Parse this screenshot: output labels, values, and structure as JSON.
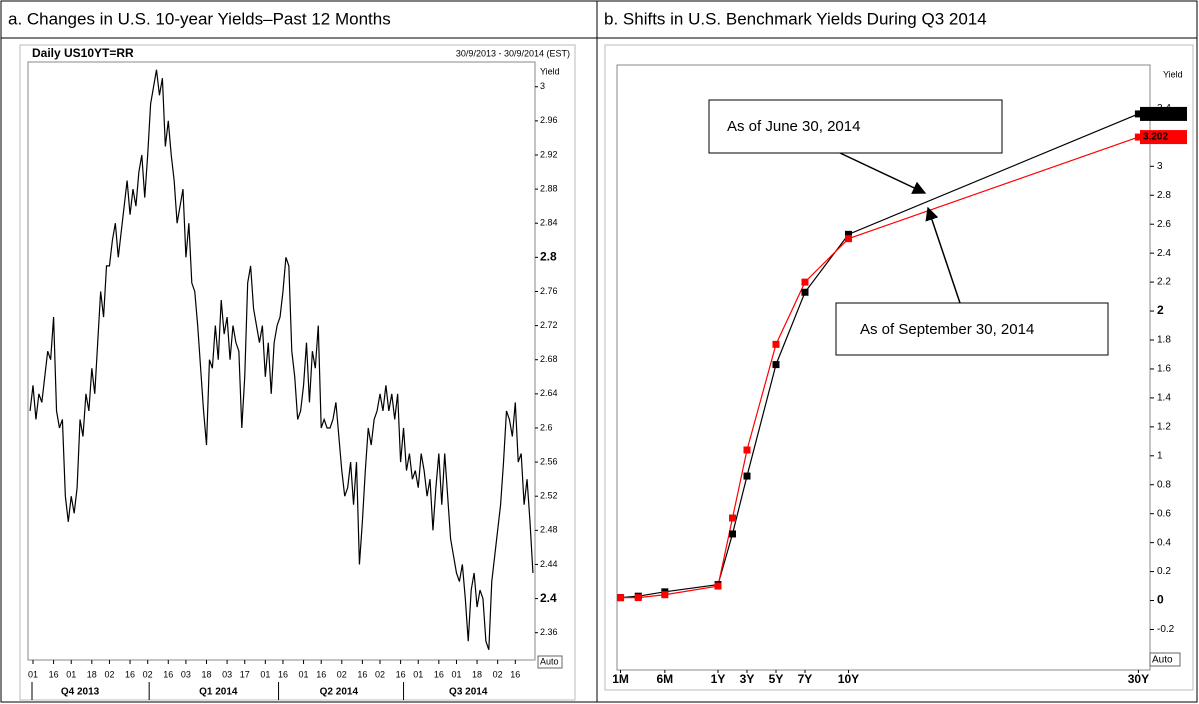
{
  "chart_data": [
    {
      "type": "line",
      "title": "a. Changes in U.S. 10-year Yields–Past 12 Months",
      "subtitle": "Daily US10YT=RR",
      "date_range": "30/9/2013 - 30/9/2014 (EST)",
      "ylabel": "Yield",
      "scale_mode": "Auto",
      "color": "#000000",
      "values": [
        2.62,
        2.65,
        2.61,
        2.64,
        2.63,
        2.66,
        2.69,
        2.68,
        2.73,
        2.62,
        2.6,
        2.61,
        2.52,
        2.49,
        2.52,
        2.5,
        2.53,
        2.61,
        2.59,
        2.64,
        2.62,
        2.67,
        2.64,
        2.7,
        2.76,
        2.73,
        2.79,
        2.79,
        2.82,
        2.84,
        2.8,
        2.83,
        2.86,
        2.89,
        2.85,
        2.88,
        2.86,
        2.9,
        2.92,
        2.87,
        2.92,
        2.98,
        3.0,
        3.02,
        2.99,
        3.01,
        2.93,
        2.96,
        2.92,
        2.89,
        2.84,
        2.86,
        2.88,
        2.8,
        2.84,
        2.77,
        2.76,
        2.72,
        2.67,
        2.62,
        2.58,
        2.68,
        2.67,
        2.72,
        2.68,
        2.75,
        2.71,
        2.73,
        2.68,
        2.72,
        2.7,
        2.69,
        2.6,
        2.66,
        2.77,
        2.79,
        2.74,
        2.72,
        2.7,
        2.72,
        2.66,
        2.7,
        2.64,
        2.7,
        2.72,
        2.73,
        2.76,
        2.8,
        2.79,
        2.69,
        2.66,
        2.61,
        2.62,
        2.65,
        2.7,
        2.63,
        2.69,
        2.67,
        2.72,
        2.6,
        2.61,
        2.6,
        2.6,
        2.61,
        2.63,
        2.59,
        2.55,
        2.52,
        2.53,
        2.56,
        2.51,
        2.56,
        2.44,
        2.49,
        2.55,
        2.6,
        2.58,
        2.61,
        2.62,
        2.64,
        2.62,
        2.65,
        2.62,
        2.64,
        2.61,
        2.64,
        2.56,
        2.6,
        2.55,
        2.57,
        2.54,
        2.55,
        2.53,
        2.57,
        2.55,
        2.52,
        2.54,
        2.48,
        2.53,
        2.57,
        2.51,
        2.57,
        2.52,
        2.47,
        2.45,
        2.43,
        2.42,
        2.44,
        2.4,
        2.35,
        2.41,
        2.43,
        2.39,
        2.41,
        2.4,
        2.35,
        2.34,
        2.42,
        2.45,
        2.48,
        2.51,
        2.56,
        2.62,
        2.61,
        2.59,
        2.63,
        2.56,
        2.57,
        2.51,
        2.54,
        2.49,
        2.43
      ],
      "xlim": [
        -0.7,
        171.7
      ],
      "xticks": [
        {
          "value": 1,
          "label": "01"
        },
        {
          "value": 8,
          "label": "16"
        },
        {
          "value": 14,
          "label": "01"
        },
        {
          "value": 21,
          "label": "18"
        },
        {
          "value": 27,
          "label": "02"
        },
        {
          "value": 34,
          "label": "16"
        },
        {
          "value": 40,
          "label": "02"
        },
        {
          "value": 47,
          "label": "16"
        },
        {
          "value": 53,
          "label": "03"
        },
        {
          "value": 60,
          "label": "18"
        },
        {
          "value": 67,
          "label": "03"
        },
        {
          "value": 73,
          "label": "17"
        },
        {
          "value": 80,
          "label": "01"
        },
        {
          "value": 86,
          "label": "16"
        },
        {
          "value": 93,
          "label": "01"
        },
        {
          "value": 99,
          "label": "16"
        },
        {
          "value": 106,
          "label": "02"
        },
        {
          "value": 113,
          "label": "16"
        },
        {
          "value": 119,
          "label": "02"
        },
        {
          "value": 126,
          "label": "16"
        },
        {
          "value": 132,
          "label": "01"
        },
        {
          "value": 139,
          "label": "16"
        },
        {
          "value": 145,
          "label": "01"
        },
        {
          "value": 152,
          "label": "18"
        },
        {
          "value": 159,
          "label": "02"
        },
        {
          "value": 165,
          "label": "16"
        }
      ],
      "quarters": [
        {
          "value": 17,
          "label": "Q4 2013"
        },
        {
          "value": 64,
          "label": "Q1 2014"
        },
        {
          "value": 105,
          "label": "Q2 2014"
        },
        {
          "value": 149,
          "label": "Q3 2014"
        }
      ],
      "ylim": [
        2.328,
        3.029
      ],
      "yticks": [
        2.36,
        2.4,
        2.44,
        2.48,
        2.52,
        2.56,
        2.6,
        2.64,
        2.68,
        2.72,
        2.76,
        2.8,
        2.84,
        2.88,
        2.92,
        2.96,
        3
      ],
      "grid": false
    },
    {
      "type": "yield_curve",
      "title": "b. Shifts in U.S. Benchmark Yields During Q3 2014",
      "ylabel": "Yield",
      "scale_mode": "Auto",
      "x": [
        0.0833,
        0.25,
        0.5,
        1,
        2,
        3,
        5,
        7,
        10,
        30
      ],
      "xlim": [
        0.05,
        30.8
      ],
      "xticks": [
        {
          "value": 0.0833,
          "label": "1M"
        },
        {
          "value": 0.5,
          "label": "6M"
        },
        {
          "value": 1,
          "label": "1Y"
        },
        {
          "value": 3,
          "label": "3Y"
        },
        {
          "value": 5,
          "label": "5Y"
        },
        {
          "value": 7,
          "label": "7Y"
        },
        {
          "value": 10,
          "label": "10Y"
        },
        {
          "value": 30,
          "label": "30Y"
        }
      ],
      "ylim": [
        -0.48,
        3.7
      ],
      "yticks": [
        -0.2,
        0,
        0.2,
        0.4,
        0.6,
        0.8,
        1,
        1.2,
        1.4,
        1.6,
        1.8,
        2,
        2.2,
        2.4,
        2.6,
        2.8,
        3,
        3.2,
        3.4
      ],
      "series": [
        {
          "color": "#000000",
          "values": [
            0.02,
            0.03,
            0.06,
            0.11,
            0.46,
            0.86,
            1.63,
            2.13,
            2.53,
            3.362
          ]
        },
        {
          "color": "#ff0000",
          "values": [
            0.02,
            0.02,
            0.04,
            0.1,
            0.57,
            1.04,
            1.77,
            2.2,
            2.5,
            3.202
          ]
        }
      ],
      "annotations": [
        "As of June 30, 2014",
        "As of September 30, 2014"
      ],
      "grid": false
    }
  ]
}
